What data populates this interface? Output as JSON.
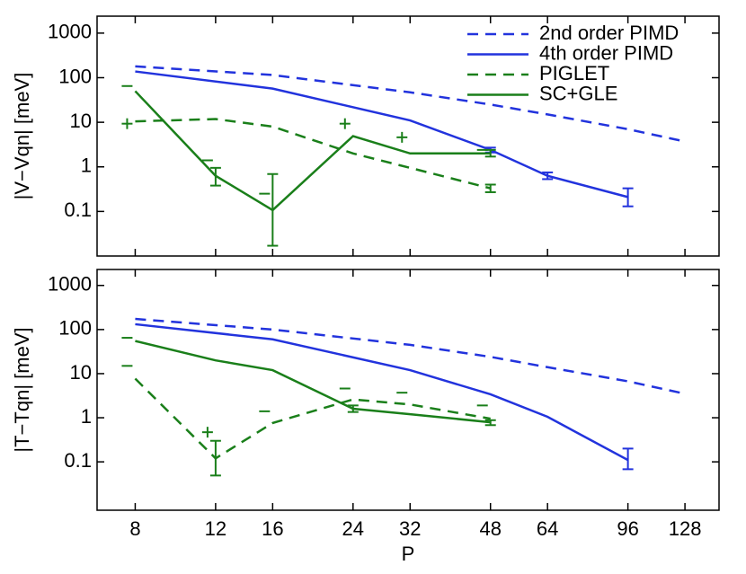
{
  "chart_data": [
    {
      "type": "line",
      "ylabel": "|V−Vqn| [meV]",
      "xscale": "log",
      "yscale": "log",
      "xlim": [
        6.6,
        152
      ],
      "ylim": [
        0.01,
        2400
      ],
      "xticks": [
        8,
        12,
        16,
        24,
        32,
        48,
        64,
        96,
        128
      ],
      "show_xtick_labels": false,
      "yticks": [
        1000,
        100,
        10,
        1,
        0.1
      ],
      "legend": "upper right",
      "series": [
        {
          "name": "2nd order PIMD",
          "color": "#2233dd",
          "dash": true,
          "x": [
            8,
            16,
            32,
            48,
            64,
            96,
            128
          ],
          "values": [
            180,
            115,
            47,
            25,
            15,
            7,
            3.7
          ]
        },
        {
          "name": "4th order PIMD",
          "color": "#2233dd",
          "dash": false,
          "x": [
            8,
            16,
            32,
            48,
            64,
            96
          ],
          "values": [
            138,
            57,
            11,
            2.4,
            0.63,
            0.21
          ],
          "error_bounds": [
            null,
            null,
            null,
            [
              2.1,
              2.7
            ],
            [
              0.53,
              0.75
            ],
            [
              0.13,
              0.33
            ]
          ]
        },
        {
          "name": "PIGLET",
          "color": "#1a7f1a",
          "dash": true,
          "x": [
            8,
            12,
            16,
            24,
            32,
            48
          ],
          "values": [
            10.5,
            11.8,
            8,
            2,
            0.95,
            0.33
          ],
          "error_bounds": [
            null,
            null,
            null,
            null,
            null,
            [
              0.27,
              0.4
            ]
          ]
        },
        {
          "name": "SC+GLE",
          "color": "#1a7f1a",
          "dash": false,
          "x": [
            8,
            12,
            16,
            24,
            32,
            48
          ],
          "values": [
            50,
            0.63,
            0.107,
            4.9,
            2,
            2
          ],
          "error_bounds": [
            null,
            [
              0.38,
              0.95
            ],
            [
              0.017,
              0.69
            ],
            null,
            null,
            [
              1.7,
              2.4
            ]
          ]
        }
      ],
      "markers": [
        {
          "marker": "+",
          "color": "#1a7f1a",
          "x": [
            8,
            24,
            32
          ],
          "values": [
            9.3,
            9.3,
            4.6
          ]
        },
        {
          "marker": "-",
          "color": "#1a7f1a",
          "x": [
            8,
            12,
            16,
            48
          ],
          "values": [
            65,
            1.4,
            0.25,
            2.4
          ]
        }
      ]
    },
    {
      "type": "line",
      "ylabel": "|T−Tqn| [meV]",
      "xlabel": "P",
      "xscale": "log",
      "yscale": "log",
      "xlim": [
        6.6,
        152
      ],
      "ylim": [
        0.008,
        2300
      ],
      "xticks": [
        8,
        12,
        16,
        24,
        32,
        48,
        64,
        96,
        128
      ],
      "show_xtick_labels": true,
      "yticks": [
        1000,
        100,
        10,
        1,
        0.1
      ],
      "series": [
        {
          "color": "#2233dd",
          "dash": true,
          "x": [
            8,
            16,
            32,
            48,
            64,
            96,
            128
          ],
          "values": [
            174,
            100,
            45,
            24,
            14,
            6.7,
            3.5
          ]
        },
        {
          "color": "#2233dd",
          "dash": false,
          "x": [
            8,
            16,
            32,
            48,
            64,
            96
          ],
          "values": [
            132,
            60,
            12,
            3.4,
            1.05,
            0.11
          ],
          "error_bounds": [
            null,
            null,
            null,
            null,
            null,
            [
              0.068,
              0.2
            ]
          ]
        },
        {
          "color": "#1a7f1a",
          "dash": true,
          "x": [
            8,
            12,
            16,
            24,
            32,
            48
          ],
          "values": [
            7.7,
            0.12,
            0.76,
            2.6,
            2,
            0.95
          ],
          "error_bounds": [
            null,
            [
              0.049,
              0.3
            ],
            null,
            null,
            null,
            null
          ]
        },
        {
          "color": "#1a7f1a",
          "dash": false,
          "x": [
            8,
            12,
            16,
            24,
            32,
            48
          ],
          "values": [
            55,
            20,
            12,
            1.6,
            1.2,
            0.79
          ],
          "error_bounds": [
            null,
            null,
            null,
            [
              1.35,
              1.9
            ],
            null,
            [
              0.68,
              0.88
            ]
          ]
        }
      ],
      "markers": [
        {
          "marker": "+",
          "color": "#1a7f1a",
          "x": [
            12
          ],
          "values": [
            0.47
          ]
        },
        {
          "marker": "-",
          "color": "#1a7f1a",
          "x": [
            8,
            8,
            16,
            24,
            32,
            48
          ],
          "values": [
            65,
            15,
            1.4,
            4.6,
            3.7,
            1.9
          ]
        }
      ]
    }
  ]
}
